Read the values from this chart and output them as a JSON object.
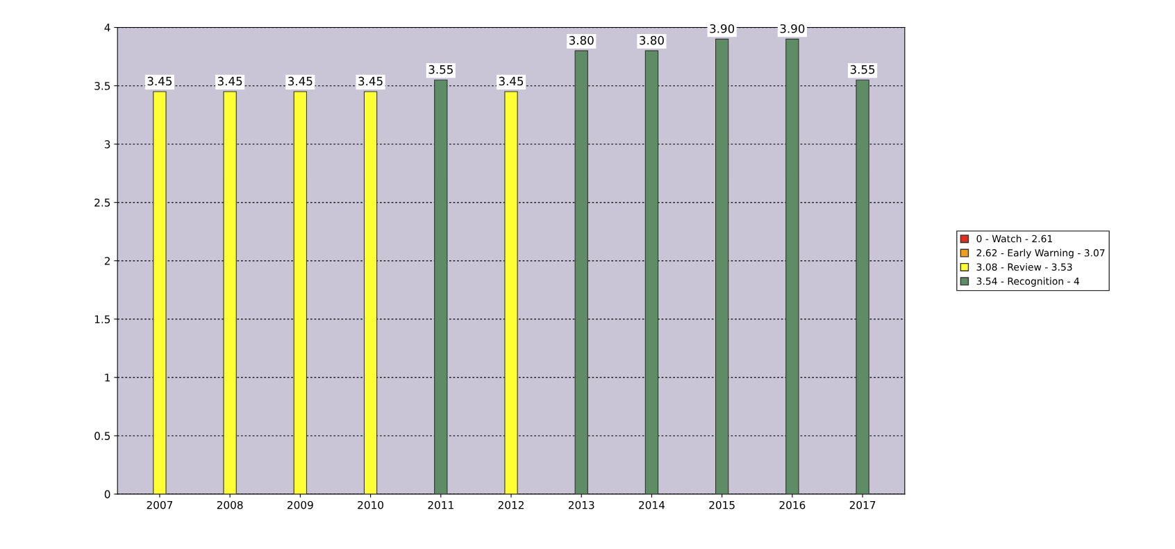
{
  "chart_data": {
    "type": "bar",
    "categories": [
      "2007",
      "2008",
      "2009",
      "2010",
      "2011",
      "2012",
      "2013",
      "2014",
      "2015",
      "2016",
      "2017"
    ],
    "series": [
      {
        "name": "0 - Watch - 2.61",
        "color": "#e0301e",
        "values": [
          null,
          null,
          null,
          null,
          null,
          null,
          null,
          null,
          null,
          null,
          null
        ]
      },
      {
        "name": "2.62 - Early Warning - 3.07",
        "color": "#f0a020",
        "values": [
          null,
          null,
          null,
          null,
          null,
          null,
          null,
          null,
          null,
          null,
          null
        ]
      },
      {
        "name": "3.08 - Review - 3.53",
        "color": "#ffff33",
        "values": [
          3.45,
          3.45,
          3.45,
          3.45,
          null,
          3.45,
          null,
          null,
          null,
          null,
          null
        ],
        "value_labels": [
          "3.45",
          "3.45",
          "3.45",
          "3.45",
          null,
          "3.45",
          null,
          null,
          null,
          null,
          null
        ]
      },
      {
        "name": "3.54 - Recognition - 4",
        "color": "#5e8c64",
        "values": [
          null,
          null,
          null,
          null,
          3.55,
          null,
          3.8,
          3.8,
          3.9,
          3.9,
          3.55
        ],
        "value_labels": [
          null,
          null,
          null,
          null,
          "3.55",
          null,
          "3.80",
          "3.80",
          "3.90",
          "3.90",
          "3.55"
        ]
      }
    ],
    "ylim": [
      0,
      4
    ],
    "yticks": [
      0,
      0.5,
      1,
      1.5,
      2,
      2.5,
      3,
      3.5,
      4
    ],
    "grid": "y",
    "legend": "right"
  }
}
